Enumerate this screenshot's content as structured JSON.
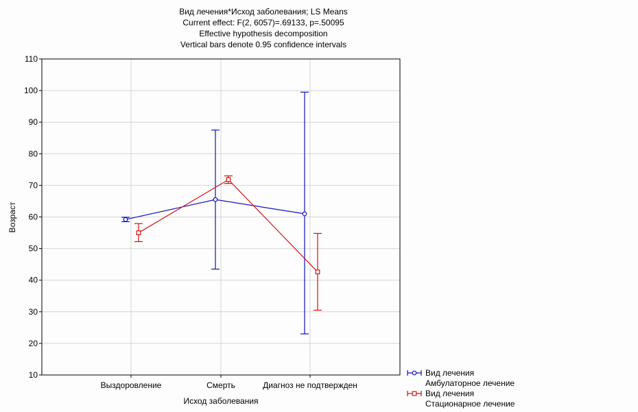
{
  "chart_data": {
    "type": "line",
    "title": [
      "Вид лечения*Исход заболевания; LS Means",
      "Current effect: F(2, 6057)=.69133, p=.50095",
      "Effective hypothesis decomposition",
      "Vertical bars denote 0.95 confidence intervals"
    ],
    "xlabel": "Исход заболевания",
    "ylabel": "Возраст",
    "ylim": [
      10,
      110
    ],
    "yticks": [
      10,
      20,
      30,
      40,
      50,
      60,
      70,
      80,
      90,
      100,
      110
    ],
    "categories": [
      "Выздоровление",
      "Смерть",
      "Диагноз не подтвержден"
    ],
    "grid": true,
    "legend_position": "bottom-right",
    "series": [
      {
        "legend_title": "Вид лечения",
        "name": "Амбулаторное лечение",
        "color": "#1010c0",
        "marker": "circle",
        "values": [
          59.2,
          65.5,
          61.0
        ],
        "ci_low": [
          58.5,
          43.5,
          23.0
        ],
        "ci_high": [
          59.9,
          87.5,
          99.5
        ]
      },
      {
        "legend_title": "Вид лечения",
        "name": "Стационарное лечение",
        "color": "#d01010",
        "marker": "square",
        "values": [
          55.0,
          71.8,
          42.6
        ],
        "ci_low": [
          52.2,
          70.6,
          30.5
        ],
        "ci_high": [
          57.9,
          73.0,
          54.8
        ]
      }
    ]
  }
}
